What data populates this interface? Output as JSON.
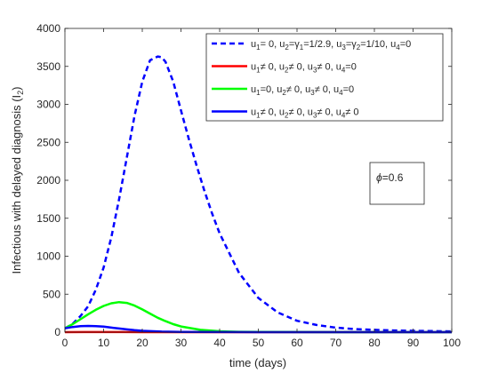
{
  "chart_data": {
    "type": "line",
    "xlabel": "time (days)",
    "ylabel": "Infectious with delayed diagnosis (I",
    "ylabel_sub": "2",
    "ylabel_suffix": ")",
    "xlim": [
      0,
      100
    ],
    "ylim": [
      0,
      4000
    ],
    "xticks": [
      0,
      10,
      20,
      30,
      40,
      50,
      60,
      70,
      80,
      90,
      100
    ],
    "yticks": [
      0,
      500,
      1000,
      1500,
      2000,
      2500,
      3000,
      3500,
      4000
    ],
    "grid": false,
    "legend_position": "top-right",
    "annotation": {
      "symbol": "ϕ",
      "text": "=0.6"
    },
    "series": [
      {
        "id": "s1",
        "color": "#0000ff",
        "style": "dashed",
        "legend": [
          {
            "t": "u"
          },
          {
            "t": "1",
            "sub": true
          },
          {
            "t": "= 0, u"
          },
          {
            "t": "2",
            "sub": true
          },
          {
            "t": "=γ"
          },
          {
            "t": "1",
            "sub": true
          },
          {
            "t": "=1/2.9, u"
          },
          {
            "t": "3",
            "sub": true
          },
          {
            "t": "=γ"
          },
          {
            "t": "2",
            "sub": true
          },
          {
            "t": "=1/10, u"
          },
          {
            "t": "4",
            "sub": true
          },
          {
            "t": "=0"
          }
        ],
        "x": [
          0,
          2,
          4,
          6,
          8,
          10,
          12,
          14,
          16,
          18,
          20,
          22,
          24,
          25,
          26,
          28,
          30,
          32,
          34,
          36,
          38,
          40,
          45,
          50,
          55,
          60,
          65,
          70,
          75,
          80,
          85,
          90,
          95,
          100
        ],
        "y": [
          50,
          110,
          210,
          340,
          560,
          850,
          1250,
          1750,
          2300,
          2850,
          3300,
          3580,
          3630,
          3620,
          3560,
          3300,
          2920,
          2550,
          2200,
          1870,
          1570,
          1300,
          780,
          450,
          260,
          150,
          95,
          60,
          40,
          30,
          22,
          18,
          14,
          11
        ]
      },
      {
        "id": "s2",
        "color": "#ff0000",
        "style": "solid",
        "legend": [
          {
            "t": "u"
          },
          {
            "t": "1",
            "sub": true
          },
          {
            "t": "≠ 0, u"
          },
          {
            "t": "2",
            "sub": true
          },
          {
            "t": "≠ 0, u"
          },
          {
            "t": "3",
            "sub": true
          },
          {
            "t": "≠ 0, u"
          },
          {
            "t": "4",
            "sub": true
          },
          {
            "t": "=0"
          }
        ],
        "x": [
          0,
          5,
          10,
          15,
          20,
          30,
          40,
          50,
          60,
          70,
          80,
          90,
          100
        ],
        "y": [
          0,
          1,
          1,
          1,
          0,
          0,
          0,
          0,
          0,
          0,
          0,
          0,
          0
        ]
      },
      {
        "id": "s3",
        "color": "#00ff00",
        "style": "solid",
        "legend": [
          {
            "t": "u"
          },
          {
            "t": "1",
            "sub": true
          },
          {
            "t": "=0, u"
          },
          {
            "t": "2",
            "sub": true
          },
          {
            "t": "≠ 0, u"
          },
          {
            "t": "3",
            "sub": true
          },
          {
            "t": "≠ 0, u"
          },
          {
            "t": "4",
            "sub": true
          },
          {
            "t": "=0"
          }
        ],
        "x": [
          0,
          2,
          4,
          6,
          8,
          10,
          12,
          14,
          16,
          18,
          20,
          22,
          24,
          26,
          28,
          30,
          35,
          40,
          45,
          50,
          60,
          70,
          80,
          90,
          100
        ],
        "y": [
          50,
          105,
          170,
          235,
          295,
          345,
          380,
          395,
          385,
          350,
          300,
          245,
          190,
          145,
          105,
          75,
          30,
          12,
          5,
          2,
          1,
          0,
          0,
          0,
          0
        ]
      },
      {
        "id": "s4",
        "color": "#0000ff",
        "style": "solid",
        "legend": [
          {
            "t": "u"
          },
          {
            "t": "1",
            "sub": true
          },
          {
            "t": "≠ 0, u"
          },
          {
            "t": "2",
            "sub": true
          },
          {
            "t": "≠ 0, u"
          },
          {
            "t": "3",
            "sub": true
          },
          {
            "t": "≠ 0, u"
          },
          {
            "t": "4",
            "sub": true
          },
          {
            "t": "≠ 0"
          }
        ],
        "x": [
          0,
          2,
          4,
          6,
          8,
          10,
          12,
          14,
          16,
          18,
          20,
          25,
          30,
          40,
          50,
          60,
          70,
          80,
          90,
          100
        ],
        "y": [
          50,
          68,
          78,
          82,
          80,
          72,
          60,
          48,
          36,
          26,
          18,
          7,
          3,
          1,
          0,
          0,
          0,
          0,
          0,
          0
        ]
      }
    ]
  }
}
